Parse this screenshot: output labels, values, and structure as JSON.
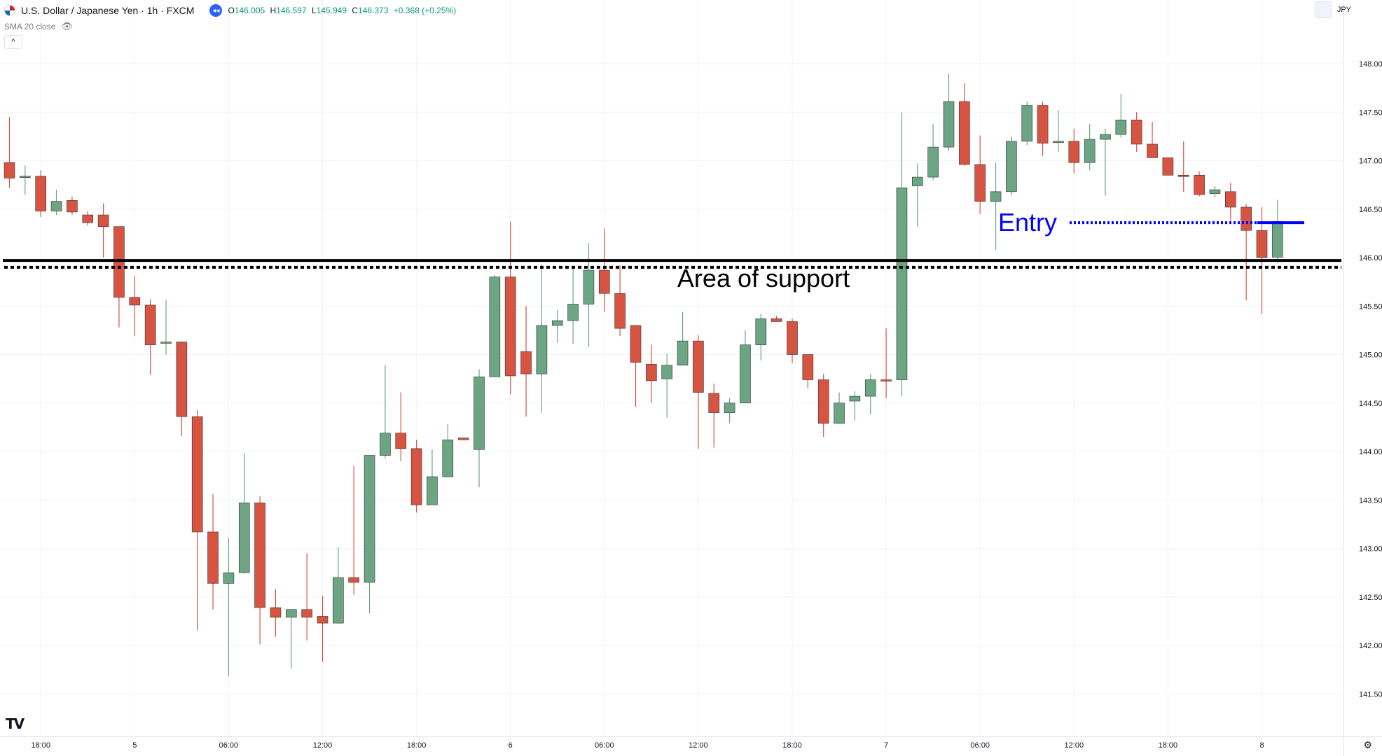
{
  "header": {
    "symbol_title": "U.S. Dollar / Japanese Yen · 1h · FXCM",
    "ohlc": {
      "open_label": "O",
      "open": "146.005",
      "high_label": "H",
      "high": "146.597",
      "low_label": "L",
      "low": "145.949",
      "close_label": "C",
      "close": "146.373",
      "change": "+0.368 (+0.25%)"
    },
    "indicator_label": "SMA 20 close",
    "currency": "JPY",
    "collapse_glyph": "◂◂",
    "chevron_glyph": "^",
    "eye_glyph": "👁",
    "logo_glyph": "TV",
    "gear_glyph": "⚙"
  },
  "colors": {
    "up": "#6ba583",
    "down": "#d75442",
    "support_line": "#000000",
    "entry": "#0000ff",
    "grid": "#f0f3fa",
    "axis_text": "#131722"
  },
  "chart_data": {
    "type": "candlestick",
    "title": "U.S. Dollar / Japanese Yen · 1h · FXCM",
    "ylim": [
      141.3,
      148.3
    ],
    "y_ticks": [
      141.5,
      142,
      142.5,
      143,
      143.5,
      144,
      144.5,
      145,
      145.5,
      146,
      146.5,
      147,
      147.5,
      148
    ],
    "y_tick_labels": [
      "141.500",
      "142.000",
      "142.500",
      "143.000",
      "143.500",
      "144.000",
      "144.500",
      "145.000",
      "145.500",
      "146.000",
      "146.500",
      "147.000",
      "147.500",
      "148.000"
    ],
    "x_tick_labels": [
      "18:00",
      "5",
      "06:00",
      "12:00",
      "18:00",
      "6",
      "06:00",
      "12:00",
      "18:00",
      "7",
      "06:00",
      "12:00",
      "18:00",
      "8"
    ],
    "x_tick_bar_index": [
      2,
      8,
      14,
      20,
      26,
      32,
      38,
      44,
      50,
      56,
      62,
      68,
      74,
      80
    ],
    "grid": true,
    "candles": [
      {
        "o": 146.98,
        "h": 147.45,
        "l": 146.72,
        "c": 146.82
      },
      {
        "o": 146.84,
        "h": 146.95,
        "l": 146.65,
        "c": 146.84
      },
      {
        "o": 146.84,
        "h": 146.9,
        "l": 146.42,
        "c": 146.48
      },
      {
        "o": 146.48,
        "h": 146.7,
        "l": 146.44,
        "c": 146.58
      },
      {
        "o": 146.59,
        "h": 146.63,
        "l": 146.44,
        "c": 146.47
      },
      {
        "o": 146.44,
        "h": 146.48,
        "l": 146.33,
        "c": 146.36
      },
      {
        "o": 146.44,
        "h": 146.56,
        "l": 146.0,
        "c": 146.32
      },
      {
        "o": 146.32,
        "h": 146.32,
        "l": 145.28,
        "c": 145.59
      },
      {
        "o": 145.59,
        "h": 145.81,
        "l": 145.19,
        "c": 145.51
      },
      {
        "o": 145.51,
        "h": 145.57,
        "l": 144.79,
        "c": 145.1
      },
      {
        "o": 145.12,
        "h": 145.56,
        "l": 145.0,
        "c": 145.13
      },
      {
        "o": 145.13,
        "h": 145.13,
        "l": 144.16,
        "c": 144.36
      },
      {
        "o": 144.36,
        "h": 144.43,
        "l": 142.15,
        "c": 143.17
      },
      {
        "o": 143.17,
        "h": 143.56,
        "l": 142.37,
        "c": 142.64
      },
      {
        "o": 142.64,
        "h": 143.11,
        "l": 141.68,
        "c": 142.75
      },
      {
        "o": 142.75,
        "h": 143.98,
        "l": 142.74,
        "c": 143.47
      },
      {
        "o": 143.47,
        "h": 143.54,
        "l": 142.01,
        "c": 142.39
      },
      {
        "o": 142.39,
        "h": 142.58,
        "l": 142.09,
        "c": 142.29
      },
      {
        "o": 142.29,
        "h": 142.37,
        "l": 141.76,
        "c": 142.37
      },
      {
        "o": 142.37,
        "h": 142.95,
        "l": 142.05,
        "c": 142.29
      },
      {
        "o": 142.3,
        "h": 142.51,
        "l": 141.83,
        "c": 142.23
      },
      {
        "o": 142.23,
        "h": 143.01,
        "l": 142.23,
        "c": 142.7
      },
      {
        "o": 142.7,
        "h": 143.85,
        "l": 142.52,
        "c": 142.65
      },
      {
        "o": 142.65,
        "h": 143.96,
        "l": 142.33,
        "c": 143.96
      },
      {
        "o": 143.96,
        "h": 144.89,
        "l": 143.93,
        "c": 144.19
      },
      {
        "o": 144.19,
        "h": 144.61,
        "l": 143.9,
        "c": 144.03
      },
      {
        "o": 144.03,
        "h": 144.12,
        "l": 143.37,
        "c": 143.45
      },
      {
        "o": 143.45,
        "h": 144.02,
        "l": 143.45,
        "c": 143.74
      },
      {
        "o": 143.74,
        "h": 144.28,
        "l": 143.74,
        "c": 144.12
      },
      {
        "o": 144.14,
        "h": 144.14,
        "l": 144.12,
        "c": 144.12
      },
      {
        "o": 144.02,
        "h": 144.85,
        "l": 143.63,
        "c": 144.77
      },
      {
        "o": 144.77,
        "h": 145.82,
        "l": 144.77,
        "c": 145.8
      },
      {
        "o": 145.8,
        "h": 146.37,
        "l": 144.59,
        "c": 144.78
      },
      {
        "o": 145.03,
        "h": 145.5,
        "l": 144.36,
        "c": 144.8
      },
      {
        "o": 144.8,
        "h": 145.93,
        "l": 144.4,
        "c": 145.3
      },
      {
        "o": 145.3,
        "h": 145.46,
        "l": 145.12,
        "c": 145.35
      },
      {
        "o": 145.35,
        "h": 145.9,
        "l": 145.11,
        "c": 145.52
      },
      {
        "o": 145.52,
        "h": 146.15,
        "l": 145.08,
        "c": 145.87
      },
      {
        "o": 145.87,
        "h": 146.3,
        "l": 145.44,
        "c": 145.63
      },
      {
        "o": 145.63,
        "h": 145.92,
        "l": 145.19,
        "c": 145.27
      },
      {
        "o": 145.3,
        "h": 145.3,
        "l": 144.46,
        "c": 144.92
      },
      {
        "o": 144.9,
        "h": 145.1,
        "l": 144.5,
        "c": 144.73
      },
      {
        "o": 144.75,
        "h": 145.01,
        "l": 144.35,
        "c": 144.89
      },
      {
        "o": 144.89,
        "h": 145.44,
        "l": 144.89,
        "c": 145.14
      },
      {
        "o": 145.14,
        "h": 145.2,
        "l": 144.03,
        "c": 144.61
      },
      {
        "o": 144.6,
        "h": 144.7,
        "l": 144.04,
        "c": 144.4
      },
      {
        "o": 144.4,
        "h": 144.55,
        "l": 144.29,
        "c": 144.5
      },
      {
        "o": 144.5,
        "h": 145.25,
        "l": 144.5,
        "c": 145.1
      },
      {
        "o": 145.1,
        "h": 145.42,
        "l": 144.94,
        "c": 145.37
      },
      {
        "o": 145.37,
        "h": 145.4,
        "l": 145.34,
        "c": 145.34
      },
      {
        "o": 145.34,
        "h": 145.37,
        "l": 144.91,
        "c": 145.0
      },
      {
        "o": 145.0,
        "h": 145.0,
        "l": 144.65,
        "c": 144.74
      },
      {
        "o": 144.74,
        "h": 144.8,
        "l": 144.15,
        "c": 144.29
      },
      {
        "o": 144.29,
        "h": 144.61,
        "l": 144.29,
        "c": 144.5
      },
      {
        "o": 144.52,
        "h": 144.62,
        "l": 144.32,
        "c": 144.57
      },
      {
        "o": 144.57,
        "h": 144.8,
        "l": 144.38,
        "c": 144.74
      },
      {
        "o": 144.74,
        "h": 145.27,
        "l": 144.55,
        "c": 144.73
      },
      {
        "o": 144.74,
        "h": 147.5,
        "l": 144.57,
        "c": 146.72
      },
      {
        "o": 146.74,
        "h": 146.97,
        "l": 146.32,
        "c": 146.83
      },
      {
        "o": 146.83,
        "h": 147.38,
        "l": 146.8,
        "c": 147.14
      },
      {
        "o": 147.14,
        "h": 147.9,
        "l": 147.1,
        "c": 147.61
      },
      {
        "o": 147.61,
        "h": 147.8,
        "l": 146.95,
        "c": 146.96
      },
      {
        "o": 146.96,
        "h": 147.26,
        "l": 146.45,
        "c": 146.58
      },
      {
        "o": 146.58,
        "h": 146.98,
        "l": 146.08,
        "c": 146.68
      },
      {
        "o": 146.68,
        "h": 147.25,
        "l": 146.64,
        "c": 147.2
      },
      {
        "o": 147.2,
        "h": 147.61,
        "l": 147.16,
        "c": 147.57
      },
      {
        "o": 147.57,
        "h": 147.61,
        "l": 147.05,
        "c": 147.18
      },
      {
        "o": 147.19,
        "h": 147.52,
        "l": 147.09,
        "c": 147.2
      },
      {
        "o": 147.2,
        "h": 147.33,
        "l": 146.87,
        "c": 146.98
      },
      {
        "o": 146.98,
        "h": 147.38,
        "l": 146.9,
        "c": 147.22
      },
      {
        "o": 147.22,
        "h": 147.33,
        "l": 146.64,
        "c": 147.27
      },
      {
        "o": 147.27,
        "h": 147.69,
        "l": 147.24,
        "c": 147.42
      },
      {
        "o": 147.42,
        "h": 147.5,
        "l": 147.09,
        "c": 147.17
      },
      {
        "o": 147.17,
        "h": 147.4,
        "l": 147.1,
        "c": 147.03
      },
      {
        "o": 147.03,
        "h": 147.03,
        "l": 146.85,
        "c": 146.85
      },
      {
        "o": 146.85,
        "h": 147.2,
        "l": 146.68,
        "c": 146.84
      },
      {
        "o": 146.85,
        "h": 146.89,
        "l": 146.63,
        "c": 146.65
      },
      {
        "o": 146.66,
        "h": 146.74,
        "l": 146.62,
        "c": 146.7
      },
      {
        "o": 146.68,
        "h": 146.77,
        "l": 146.38,
        "c": 146.52
      },
      {
        "o": 146.52,
        "h": 146.55,
        "l": 145.56,
        "c": 146.28
      },
      {
        "o": 146.28,
        "h": 146.52,
        "l": 145.42,
        "c": 146.0
      },
      {
        "o": 146.005,
        "h": 146.597,
        "l": 145.949,
        "c": 146.373
      }
    ],
    "support_level": 145.97,
    "support_dotted_level": 145.9,
    "entry_level": 146.36,
    "entry_start_bar": 67,
    "entry_end_bar": 83,
    "support_label": "Area of support",
    "entry_label": "Entry"
  }
}
